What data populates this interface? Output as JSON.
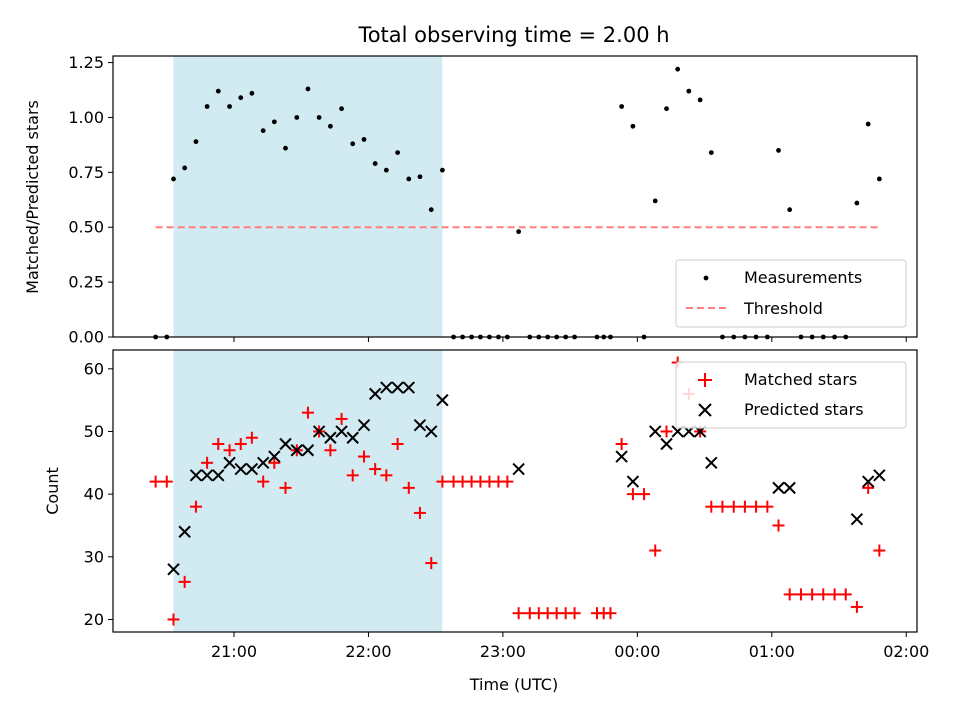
{
  "chart_data": {
    "type": "scatter",
    "title": "Total observing time = 2.00 h",
    "xlabel": "Time (UTC)",
    "x_ticks": [
      "21:00",
      "22:00",
      "23:00",
      "00:00",
      "01:00",
      "02:00"
    ],
    "x_tick_values_hours": [
      21,
      22,
      23,
      24,
      25,
      26
    ],
    "xlim_hours": [
      20.1,
      26.08
    ],
    "shaded_interval": {
      "start": "20:33",
      "end": "22:33",
      "color": "#add8e6"
    },
    "panels": [
      {
        "ylabel": "Matched/Predicted stars",
        "ylim": [
          0,
          1.28
        ],
        "y_ticks": [
          "0.00",
          "0.25",
          "0.50",
          "0.75",
          "1.00",
          "1.25"
        ],
        "y_tick_values": [
          0,
          0.25,
          0.5,
          0.75,
          1.0,
          1.25
        ],
        "legend": {
          "position": "lower-right",
          "entries": [
            "Measurements",
            "Threshold"
          ]
        },
        "series": [
          {
            "name": "Measurements",
            "marker": "dot",
            "color": "#000000",
            "x": [
              20.417,
              20.5,
              20.55,
              20.633,
              20.717,
              20.8,
              20.883,
              20.967,
              21.05,
              21.133,
              21.217,
              21.3,
              21.383,
              21.467,
              21.55,
              21.633,
              21.717,
              21.8,
              21.883,
              21.967,
              22.05,
              22.133,
              22.217,
              22.3,
              22.383,
              22.467,
              22.55,
              22.633,
              22.7,
              22.767,
              22.833,
              22.9,
              22.967,
              23.033,
              23.117,
              23.2,
              23.267,
              23.333,
              23.4,
              23.467,
              23.533,
              23.7,
              23.75,
              23.8,
              23.883,
              23.967,
              24.05,
              24.133,
              24.217,
              24.3,
              24.383,
              24.467,
              24.55,
              24.633,
              24.717,
              24.8,
              24.883,
              24.967,
              25.05,
              25.133,
              25.217,
              25.3,
              25.383,
              25.467,
              25.55,
              25.633,
              25.717,
              25.8
            ],
            "y": [
              0,
              0,
              0.72,
              0.77,
              0.89,
              1.05,
              1.12,
              1.05,
              1.09,
              1.11,
              0.94,
              0.98,
              0.86,
              1.0,
              1.13,
              1.0,
              0.96,
              1.04,
              0.88,
              0.9,
              0.79,
              0.76,
              0.84,
              0.72,
              0.73,
              0.58,
              0.76,
              0,
              0,
              0,
              0,
              0,
              0,
              0,
              0.48,
              0,
              0,
              0,
              0,
              0,
              0,
              0,
              0,
              0,
              1.05,
              0.96,
              0,
              0.62,
              1.04,
              1.22,
              1.12,
              1.08,
              0.84,
              0,
              0,
              0,
              0,
              0,
              0.85,
              0.58,
              0,
              0,
              0,
              0,
              0,
              0.61,
              0.97,
              0.72
            ]
          },
          {
            "name": "Threshold",
            "marker": "dashed-line",
            "color": "#ff7f7f",
            "x": [
              20.417,
              25.8
            ],
            "y": [
              0.5,
              0.5
            ]
          }
        ]
      },
      {
        "ylabel": "Count",
        "ylim": [
          18,
          63
        ],
        "y_ticks": [
          "20",
          "30",
          "40",
          "50",
          "60"
        ],
        "y_tick_values": [
          20,
          30,
          40,
          50,
          60
        ],
        "legend": {
          "position": "top-right",
          "entries": [
            "Matched stars",
            "Predicted stars"
          ]
        },
        "series": [
          {
            "name": "Matched stars",
            "marker": "plus",
            "color": "#ff0000",
            "x": [
              20.417,
              20.5,
              20.55,
              20.633,
              20.717,
              20.8,
              20.883,
              20.967,
              21.05,
              21.133,
              21.217,
              21.3,
              21.383,
              21.467,
              21.55,
              21.633,
              21.717,
              21.8,
              21.883,
              21.967,
              22.05,
              22.133,
              22.217,
              22.3,
              22.383,
              22.467,
              22.55,
              22.633,
              22.7,
              22.767,
              22.833,
              22.9,
              22.967,
              23.033,
              23.117,
              23.2,
              23.267,
              23.333,
              23.4,
              23.467,
              23.533,
              23.7,
              23.75,
              23.8,
              23.883,
              23.967,
              24.05,
              24.133,
              24.217,
              24.3,
              24.383,
              24.467,
              24.55,
              24.633,
              24.717,
              24.8,
              24.883,
              24.967,
              25.05,
              25.133,
              25.217,
              25.3,
              25.383,
              25.467,
              25.55,
              25.633,
              25.717,
              25.8
            ],
            "y": [
              42,
              42,
              20,
              26,
              38,
              45,
              48,
              47,
              48,
              49,
              42,
              45,
              41,
              47,
              53,
              50,
              47,
              52,
              43,
              46,
              44,
              43,
              48,
              41,
              37,
              29,
              42,
              42,
              42,
              42,
              42,
              42,
              42,
              42,
              21,
              21,
              21,
              21,
              21,
              21,
              21,
              21,
              21,
              21,
              48,
              40,
              40,
              31,
              50,
              61,
              56,
              50,
              38,
              38,
              38,
              38,
              38,
              38,
              35,
              24,
              24,
              24,
              24,
              24,
              24,
              22,
              41,
              31
            ]
          },
          {
            "name": "Predicted stars",
            "marker": "x",
            "color": "#000000",
            "x": [
              20.55,
              20.633,
              20.717,
              20.8,
              20.883,
              20.967,
              21.05,
              21.133,
              21.217,
              21.3,
              21.383,
              21.467,
              21.55,
              21.633,
              21.717,
              21.8,
              21.883,
              21.967,
              22.05,
              22.133,
              22.217,
              22.3,
              22.383,
              22.467,
              22.55,
              23.117,
              23.883,
              23.967,
              24.133,
              24.217,
              24.3,
              24.383,
              24.467,
              24.55,
              25.05,
              25.133,
              25.633,
              25.717,
              25.8
            ],
            "y": [
              28,
              34,
              43,
              43,
              43,
              45,
              44,
              44,
              45,
              46,
              48,
              47,
              47,
              50,
              49,
              50,
              49,
              51,
              56,
              57,
              57,
              57,
              51,
              50,
              55,
              44,
              46,
              42,
              50,
              48,
              50,
              50,
              50,
              45,
              41,
              41,
              36,
              42,
              43
            ]
          }
        ]
      }
    ]
  }
}
